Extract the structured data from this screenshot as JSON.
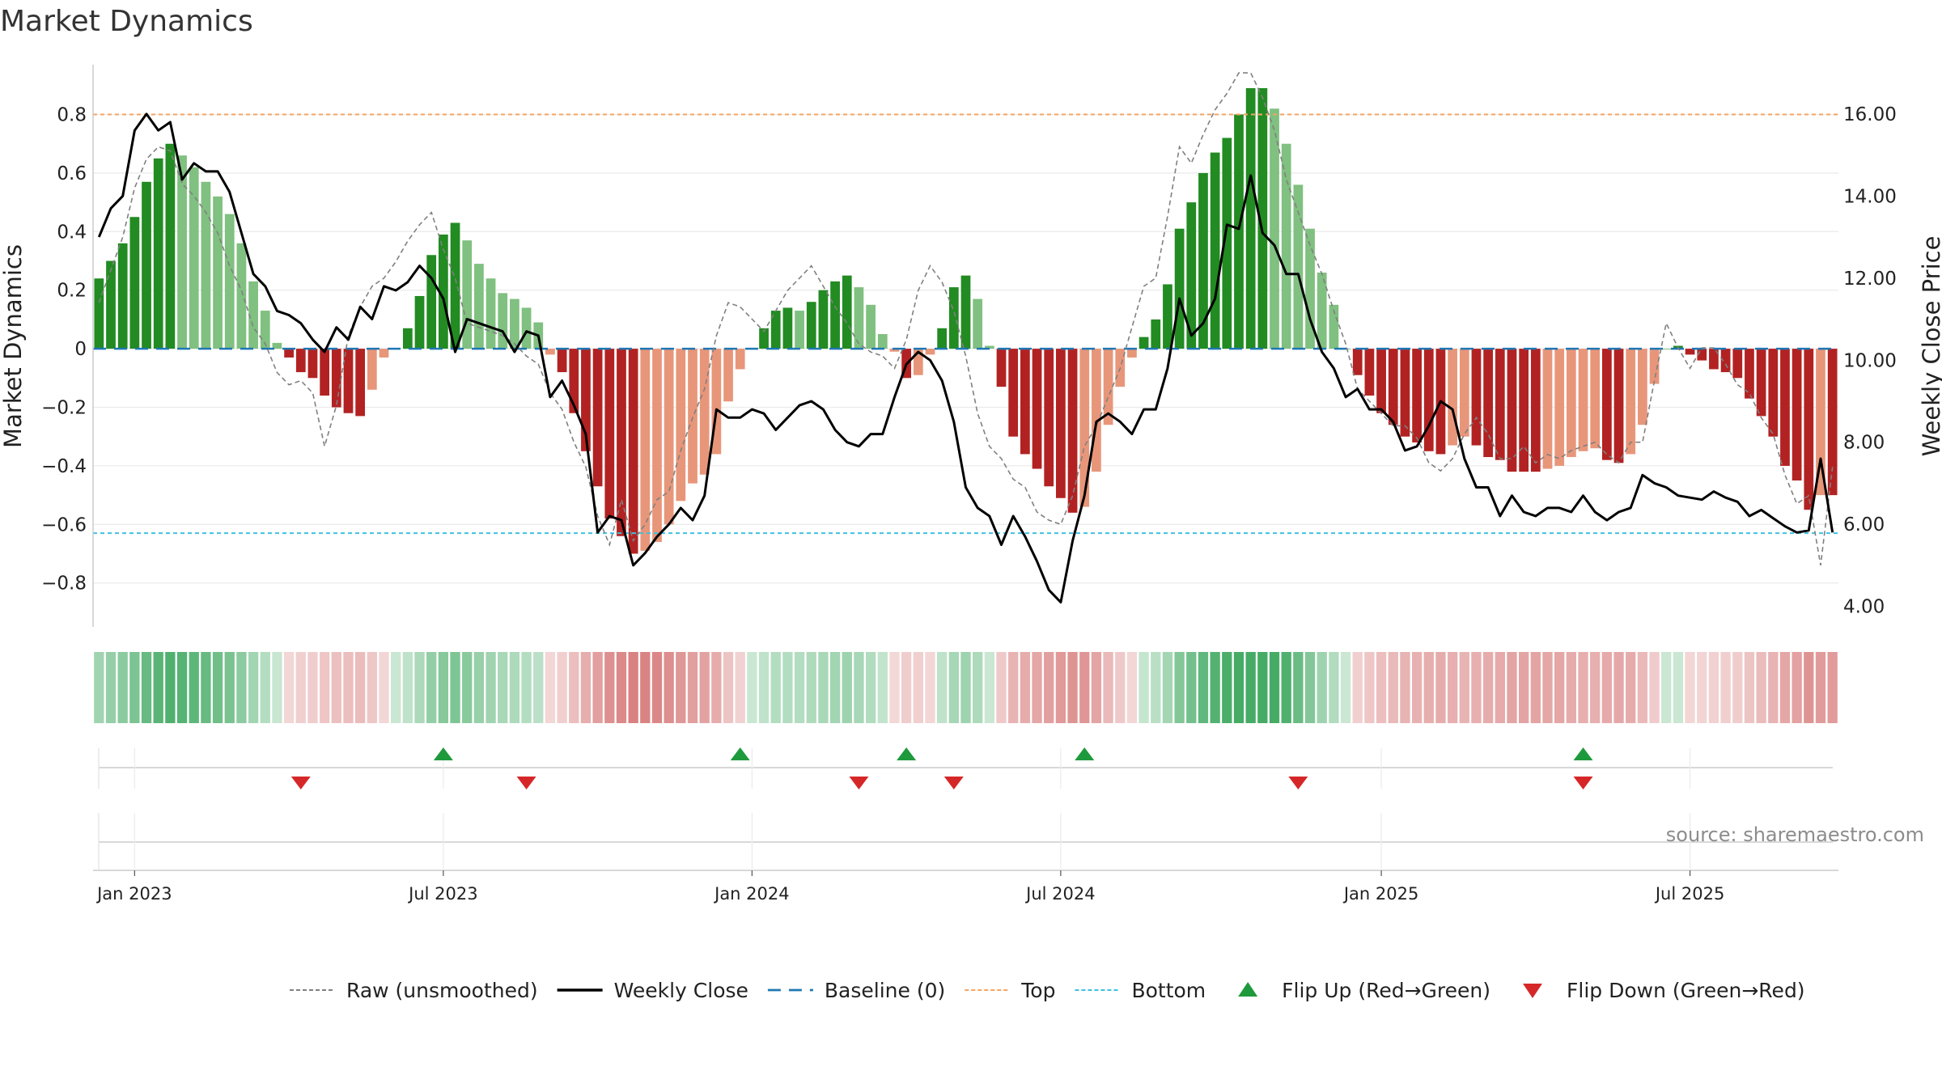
{
  "title": "Market Dynamics",
  "source": "source: sharemaestro.com",
  "colors": {
    "pos_strong": "#228b22",
    "pos_weak": "#80c080",
    "neg_strong": "#b22222",
    "neg_weak": "#e8967a",
    "baseline": "#1f77b4",
    "top": "#f4a460",
    "bottom": "#40c0e0",
    "raw": "#808080",
    "close": "#000000",
    "flip_up": "#1e9a3c",
    "flip_down": "#d62728"
  },
  "chart_data": {
    "type": "bar",
    "title": "Market Dynamics",
    "ylabel_left": "Market Dynamics",
    "ylabel_right": "Weekly Close Price",
    "ylim_left": [
      -0.95,
      0.97
    ],
    "ylim_right": [
      3.5,
      17.2
    ],
    "yticks_left": [
      {
        "v": 0.8,
        "label": "0.8"
      },
      {
        "v": 0.6,
        "label": "0.6"
      },
      {
        "v": 0.4,
        "label": "0.4"
      },
      {
        "v": 0.2,
        "label": "0.2"
      },
      {
        "v": 0,
        "label": "0"
      },
      {
        "v": -0.2,
        "label": "−0.2"
      },
      {
        "v": -0.4,
        "label": "−0.4"
      },
      {
        "v": -0.6,
        "label": "−0.6"
      },
      {
        "v": -0.8,
        "label": "−0.8"
      }
    ],
    "yticks_right": [
      {
        "v": 16,
        "label": "16.00"
      },
      {
        "v": 14,
        "label": "14.00"
      },
      {
        "v": 12,
        "label": "12.00"
      },
      {
        "v": 10,
        "label": "10.00"
      },
      {
        "v": 8,
        "label": "8.00"
      },
      {
        "v": 6,
        "label": "6.00"
      },
      {
        "v": 4,
        "label": "4.00"
      }
    ],
    "xticks": [
      {
        "week": 3,
        "label": "Jan 2023"
      },
      {
        "week": 29,
        "label": "Jul 2023"
      },
      {
        "week": 55,
        "label": "Jan 2024"
      },
      {
        "week": 81,
        "label": "Jul 2024"
      },
      {
        "week": 108,
        "label": "Jan 2025"
      },
      {
        "week": 134,
        "label": "Jul 2025"
      }
    ],
    "start_date": "2022-12-12",
    "top_level": 0.8,
    "bottom_level": -0.63,
    "grid": true,
    "legend_position": "bottom-center",
    "dynamics": [
      0.24,
      0.3,
      0.36,
      0.45,
      0.57,
      0.65,
      0.7,
      0.66,
      0.62,
      0.57,
      0.52,
      0.46,
      0.36,
      0.23,
      0.13,
      0.02,
      -0.03,
      -0.08,
      -0.1,
      -0.16,
      -0.2,
      -0.22,
      -0.23,
      -0.14,
      -0.03,
      0,
      0.07,
      0.18,
      0.32,
      0.39,
      0.43,
      0.37,
      0.29,
      0.24,
      0.19,
      0.17,
      0.14,
      0.09,
      -0.02,
      -0.08,
      -0.22,
      -0.35,
      -0.47,
      -0.58,
      -0.64,
      -0.7,
      -0.69,
      -0.66,
      -0.6,
      -0.52,
      -0.46,
      -0.43,
      -0.36,
      -0.18,
      -0.07,
      0,
      0.07,
      0.13,
      0.14,
      0.13,
      0.16,
      0.2,
      0.23,
      0.25,
      0.21,
      0.15,
      0.05,
      -0.01,
      -0.1,
      -0.09,
      -0.02,
      0.07,
      0.21,
      0.25,
      0.17,
      0.01,
      -0.13,
      -0.3,
      -0.36,
      -0.41,
      -0.47,
      -0.51,
      -0.56,
      -0.54,
      -0.42,
      -0.26,
      -0.13,
      -0.03,
      0.04,
      0.1,
      0.22,
      0.41,
      0.5,
      0.6,
      0.67,
      0.72,
      0.8,
      0.89,
      0.89,
      0.82,
      0.7,
      0.56,
      0.41,
      0.26,
      0.15,
      0,
      -0.09,
      -0.16,
      -0.22,
      -0.26,
      -0.3,
      -0.32,
      -0.35,
      -0.36,
      -0.33,
      -0.3,
      -0.33,
      -0.37,
      -0.38,
      -0.42,
      -0.42,
      -0.42,
      -0.41,
      -0.4,
      -0.37,
      -0.35,
      -0.34,
      -0.38,
      -0.39,
      -0.36,
      -0.26,
      -0.12,
      0,
      0.01,
      -0.02,
      -0.04,
      -0.07,
      -0.08,
      -0.1,
      -0.17,
      -0.23,
      -0.3,
      -0.4,
      -0.45,
      -0.55,
      -0.5,
      -0.5
    ],
    "close": [
      13,
      13.7,
      14,
      15.6,
      16,
      15.6,
      15.8,
      14.4,
      14.8,
      14.6,
      14.6,
      14.1,
      13.1,
      12.1,
      11.8,
      11.2,
      11.1,
      10.9,
      10.5,
      10.2,
      10.8,
      10.5,
      11.3,
      11,
      11.8,
      11.7,
      11.9,
      12.3,
      12,
      11.5,
      10.2,
      11,
      10.9,
      10.8,
      10.7,
      10.2,
      10.7,
      10.6,
      9.1,
      9.5,
      8.9,
      8.2,
      5.8,
      6.2,
      6.1,
      5,
      5.3,
      5.7,
      6,
      6.4,
      6.1,
      6.7,
      8.8,
      8.6,
      8.6,
      8.8,
      8.7,
      8.3,
      8.6,
      8.9,
      9,
      8.8,
      8.3,
      8,
      7.9,
      8.2,
      8.2,
      9.1,
      9.9,
      10.2,
      10,
      9.5,
      8.5,
      6.9,
      6.4,
      6.2,
      5.5,
      6.2,
      5.7,
      5.1,
      4.4,
      4.1,
      5.6,
      6.7,
      8.5,
      8.7,
      8.5,
      8.2,
      8.8,
      8.8,
      9.8,
      11.5,
      10.6,
      10.9,
      11.5,
      13.3,
      13.2,
      14.5,
      13.1,
      12.8,
      12.1,
      12.1,
      11,
      10.2,
      9.8,
      9.1,
      9.3,
      8.8,
      8.8,
      8.5,
      7.8,
      7.9,
      8.4,
      9,
      8.8,
      7.6,
      6.9,
      6.9,
      6.2,
      6.7,
      6.3,
      6.2,
      6.4,
      6.4,
      6.3,
      6.7,
      6.3,
      6.1,
      6.3,
      6.4,
      7.2,
      7,
      6.9,
      6.7,
      6.65,
      6.6,
      6.8,
      6.65,
      6.55,
      6.2,
      6.35,
      6.15,
      5.95,
      5.8,
      5.85,
      7.6,
      5.8
    ],
    "raw": [
      11.4,
      12.2,
      13,
      14.2,
      14.9,
      15.2,
      15.1,
      14.3,
      14,
      13.6,
      13.1,
      12.3,
      11.7,
      10.8,
      10.4,
      9.7,
      9.4,
      9.5,
      9.2,
      7.9,
      8.9,
      10.6,
      11.3,
      11.8,
      12,
      12.4,
      12.9,
      13.3,
      13.6,
      12.7,
      12,
      10.9,
      10.8,
      10.7,
      10.6,
      10.4,
      10.1,
      9.9,
      9.2,
      8.8,
      8,
      7.4,
      6.2,
      5.5,
      6.6,
      5.6,
      6,
      6.6,
      6.8,
      7.8,
      8.6,
      9.3,
      10.6,
      11.4,
      11.3,
      11,
      10.7,
      11.2,
      11.7,
      12,
      12.3,
      11.8,
      11.3,
      10.9,
      10.4,
      10.2,
      10.1,
      9.8,
      10.5,
      11.7,
      12.3,
      11.9,
      11.2,
      10.1,
      8.7,
      7.9,
      7.6,
      7.1,
      6.9,
      6.3,
      6.1,
      6,
      6.7,
      7.9,
      8.4,
      9.1,
      9.8,
      10.8,
      11.8,
      12,
      13.5,
      15.2,
      14.8,
      15.5,
      16.1,
      16.5,
      17,
      17,
      16.4,
      15.6,
      14.4,
      13.6,
      12.8,
      12.1,
      11.2,
      10.4,
      9.3,
      9,
      8.7,
      8.4,
      8.4,
      8.1,
      7.5,
      7.3,
      7.6,
      8.2,
      8.6,
      8.2,
      7.6,
      7.6,
      7.9,
      7.5,
      7.7,
      7.6,
      7.8,
      7.9,
      8,
      7.7,
      7.5,
      8,
      8,
      9.5,
      10.9,
      10.3,
      9.8,
      10.3,
      10.3,
      9.9,
      9.4,
      9.2,
      8.6,
      8.2,
      7.2,
      6.5,
      6.7,
      5,
      7.4
    ]
  },
  "flips_up": [
    29,
    54,
    68,
    83,
    125
  ],
  "flips_down": [
    17,
    36,
    64,
    72,
    101,
    125
  ],
  "legend": [
    {
      "type": "raw",
      "label": "Raw (unsmoothed)"
    },
    {
      "type": "close",
      "label": "Weekly Close"
    },
    {
      "type": "baseline",
      "label": "Baseline (0)"
    },
    {
      "type": "top",
      "label": "Top"
    },
    {
      "type": "bottom",
      "label": "Bottom"
    },
    {
      "type": "flip_up",
      "label": "Flip Up (Red→Green)"
    },
    {
      "type": "flip_down",
      "label": "Flip Down (Green→Red)"
    }
  ]
}
